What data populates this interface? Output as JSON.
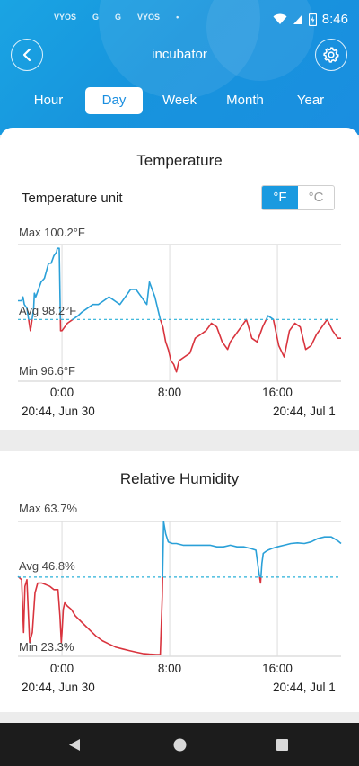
{
  "status_bar": {
    "notifications": [
      "VYOS",
      "G",
      "G",
      "VYOS",
      "•"
    ],
    "time": "8:46"
  },
  "header": {
    "title": "incubator",
    "back_icon": "chevron-left-icon",
    "settings_icon": "gear-icon"
  },
  "tabs": [
    {
      "label": "Hour",
      "active": false
    },
    {
      "label": "Day",
      "active": true
    },
    {
      "label": "Week",
      "active": false
    },
    {
      "label": "Month",
      "active": false
    },
    {
      "label": "Year",
      "active": false
    }
  ],
  "temperature": {
    "title": "Temperature",
    "unit_label": "Temperature unit",
    "unit_f": "°F",
    "unit_c": "°C",
    "selected_unit": "°F",
    "start_date": "20:44,  Jun 30",
    "end_date": "20:44,  Jul 1"
  },
  "humidity": {
    "title": "Relative Humidity",
    "start_date": "20:44,  Jun 30",
    "end_date": "20:44,  Jul 1"
  },
  "colors": {
    "above_avg": "#2aa0d8",
    "below_avg": "#d9343e",
    "avg_line": "#2ab0d8",
    "accent": "#1a9ae0"
  },
  "chart_data": [
    {
      "type": "line",
      "title": "Temperature",
      "max_label": "Max 100.2°F",
      "avg_label": "Avg 98.2°F",
      "min_label": "Min 96.6°F",
      "ylim": [
        96.6,
        100.2
      ],
      "avg": 98.2,
      "xlim": [
        -3.27,
        20.73
      ],
      "xticks": [
        0,
        8,
        16
      ],
      "xtick_labels": [
        "0:00",
        "8:00",
        "16:00"
      ],
      "x": [
        -3.27,
        -3.0,
        -2.9,
        -2.8,
        -2.6,
        -2.35,
        -2.3,
        -2.1,
        -2.05,
        -1.95,
        -1.85,
        -1.75,
        -1.65,
        -1.55,
        -1.3,
        -1.15,
        -1.0,
        -0.8,
        -0.6,
        -0.4,
        -0.35,
        -0.2,
        -0.1,
        0.0,
        0.2,
        0.4,
        0.8,
        1.2,
        1.5,
        1.9,
        2.3,
        2.7,
        3.1,
        3.5,
        3.9,
        4.3,
        4.7,
        5.1,
        5.5,
        5.7,
        5.9,
        6.1,
        6.3,
        6.5,
        6.9,
        7.3,
        7.5,
        7.7,
        7.9,
        8.1,
        8.3,
        8.5,
        8.7,
        9.1,
        9.5,
        9.9,
        10.3,
        10.7,
        11.1,
        11.5,
        11.9,
        12.3,
        12.5,
        12.9,
        13.3,
        13.7,
        14.1,
        14.5,
        14.9,
        15.3,
        15.7,
        16.1,
        16.5,
        16.9,
        17.3,
        17.7,
        18.1,
        18.5,
        18.9,
        19.3,
        19.7,
        20.1,
        20.5,
        20.73
      ],
      "values": [
        98.7,
        98.7,
        98.8,
        98.6,
        98.5,
        97.9,
        98.0,
        98.5,
        98.9,
        98.8,
        98.9,
        99.0,
        99.1,
        99.2,
        99.3,
        99.5,
        99.7,
        99.7,
        99.9,
        100.0,
        100.1,
        100.1,
        97.9,
        97.9,
        98.0,
        98.1,
        98.2,
        98.3,
        98.4,
        98.5,
        98.6,
        98.6,
        98.7,
        98.8,
        98.7,
        98.6,
        98.8,
        99.0,
        99.0,
        98.9,
        98.8,
        98.7,
        98.6,
        99.2,
        98.8,
        98.2,
        98.0,
        97.6,
        97.4,
        97.1,
        97.0,
        96.8,
        97.1,
        97.2,
        97.3,
        97.7,
        97.8,
        97.9,
        98.1,
        98.0,
        97.6,
        97.4,
        97.6,
        97.8,
        98.0,
        98.2,
        97.7,
        97.6,
        98.0,
        98.3,
        98.2,
        97.5,
        97.2,
        97.9,
        98.1,
        98.0,
        97.4,
        97.5,
        97.8,
        98.0,
        98.2,
        97.9,
        97.7,
        97.7
      ]
    },
    {
      "type": "line",
      "title": "Relative Humidity",
      "max_label": "Max 63.7%",
      "avg_label": "Avg 46.8%",
      "min_label": "Min 23.3%",
      "ylim": [
        23.3,
        63.7
      ],
      "avg": 46.8,
      "xlim": [
        -3.27,
        20.73
      ],
      "xticks": [
        0,
        8,
        16
      ],
      "xtick_labels": [
        "0:00",
        "8:00",
        "16:00"
      ],
      "x": [
        -3.27,
        -3.0,
        -2.85,
        -2.75,
        -2.6,
        -2.4,
        -2.2,
        -2.0,
        -1.8,
        -1.5,
        -1.2,
        -0.9,
        -0.6,
        -0.3,
        -0.15,
        -0.05,
        0.0,
        0.1,
        0.2,
        0.4,
        0.7,
        1.0,
        1.5,
        2.0,
        2.5,
        3.0,
        3.5,
        4.0,
        4.5,
        5.0,
        5.5,
        6.0,
        6.5,
        7.0,
        7.3,
        7.45,
        7.55,
        7.7,
        7.9,
        8.2,
        8.5,
        9.0,
        9.5,
        10.0,
        10.5,
        11.0,
        11.5,
        12.0,
        12.5,
        13.0,
        13.5,
        14.0,
        14.4,
        14.6,
        14.75,
        14.85,
        14.95,
        15.1,
        15.3,
        15.6,
        16.0,
        16.5,
        17.0,
        17.5,
        18.0,
        18.5,
        19.0,
        19.5,
        20.0,
        20.5,
        20.73
      ],
      "values": [
        47,
        46,
        30,
        44,
        46,
        27,
        30,
        42,
        45,
        45,
        44.5,
        44,
        43,
        43,
        35,
        27,
        30,
        37,
        39,
        38,
        37,
        35,
        33,
        31,
        29,
        27.5,
        26.5,
        25.5,
        25,
        24.5,
        24,
        23.6,
        23.4,
        23.3,
        23.3,
        41,
        63.7,
        60,
        57.5,
        57,
        57,
        56.5,
        56.5,
        56.5,
        56.5,
        56.5,
        56,
        56,
        56.5,
        56,
        56,
        55.5,
        55,
        49,
        45,
        51,
        54,
        54.5,
        55,
        55.5,
        56,
        56.5,
        57,
        57.2,
        57,
        57.5,
        58.5,
        59,
        59,
        57.8,
        57
      ]
    }
  ]
}
